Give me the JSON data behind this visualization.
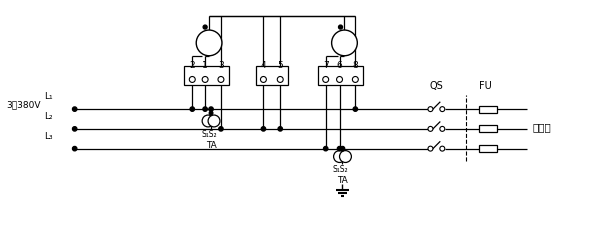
{
  "bg_color": "#ffffff",
  "fig_width": 6.0,
  "fig_height": 2.37,
  "voltage_label": "3～380V",
  "L1_label": "L₁",
  "L2_label": "L₂",
  "L3_label": "L₃",
  "QS_label": "QS",
  "FU_label": "FU",
  "load_label": "接负载",
  "TA_label": "TA",
  "S1S2_label": "S₁S₂"
}
